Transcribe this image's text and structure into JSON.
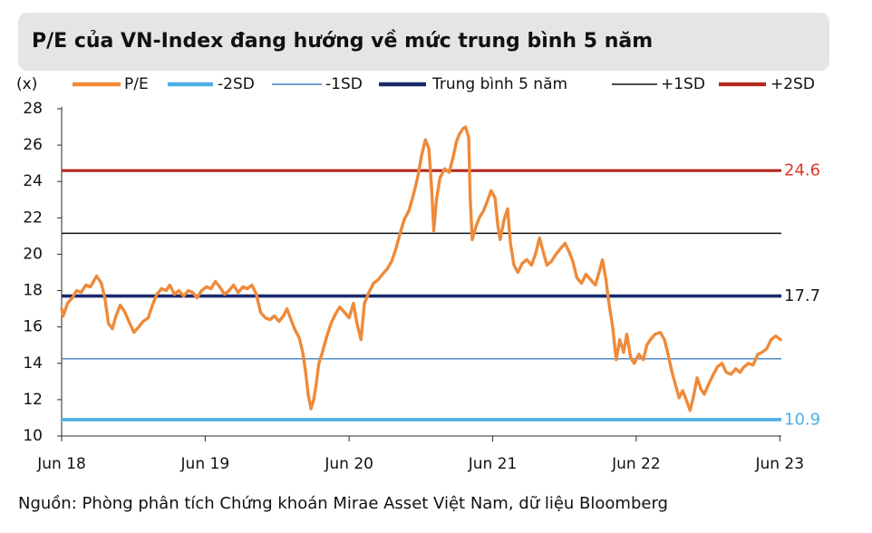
{
  "chart_data": {
    "type": "line",
    "title": "P/E của VN-Index đang hướng về mức trung bình 5 năm",
    "xlabel": "",
    "ylabel": "(x)",
    "ylim": [
      10,
      28
    ],
    "yticks": [
      28,
      26,
      24,
      22,
      20,
      18,
      16,
      14,
      12,
      10
    ],
    "xlim": [
      "2018-06-01",
      "2023-06-05"
    ],
    "xticks": [
      {
        "label": "Jun 18",
        "date": "2018-06-01"
      },
      {
        "label": "Jun 19",
        "date": "2019-06-01"
      },
      {
        "label": "Jun 20",
        "date": "2020-06-01"
      },
      {
        "label": "Jun 21",
        "date": "2021-06-01"
      },
      {
        "label": "Jun 22",
        "date": "2022-06-01"
      },
      {
        "label": "Jun 23",
        "date": "2023-06-01"
      }
    ],
    "grid": false,
    "legend": "top",
    "series": [
      {
        "name": "P/E",
        "color": "#ee8a3a",
        "points": [
          [
            "2018-06-01",
            17.0
          ],
          [
            "2018-06-05",
            16.6
          ],
          [
            "2018-06-16",
            17.3
          ],
          [
            "2018-06-28",
            17.6
          ],
          [
            "2018-07-09",
            18.0
          ],
          [
            "2018-07-20",
            17.9
          ],
          [
            "2018-08-02",
            18.3
          ],
          [
            "2018-08-13",
            18.2
          ],
          [
            "2018-08-29",
            18.8
          ],
          [
            "2018-09-10",
            18.4
          ],
          [
            "2018-09-19",
            17.6
          ],
          [
            "2018-09-28",
            16.2
          ],
          [
            "2018-10-08",
            15.9
          ],
          [
            "2018-10-17",
            16.6
          ],
          [
            "2018-10-28",
            17.2
          ],
          [
            "2018-11-09",
            16.8
          ],
          [
            "2018-11-21",
            16.2
          ],
          [
            "2018-12-02",
            15.7
          ],
          [
            "2018-12-14",
            16.0
          ],
          [
            "2018-12-25",
            16.3
          ],
          [
            "2019-01-07",
            16.5
          ],
          [
            "2019-01-18",
            17.2
          ],
          [
            "2019-01-29",
            17.8
          ],
          [
            "2019-02-10",
            18.1
          ],
          [
            "2019-02-22",
            18.0
          ],
          [
            "2019-03-03",
            18.3
          ],
          [
            "2019-03-15",
            17.8
          ],
          [
            "2019-03-26",
            18.0
          ],
          [
            "2019-04-07",
            17.7
          ],
          [
            "2019-04-19",
            18.0
          ],
          [
            "2019-04-30",
            17.9
          ],
          [
            "2019-05-11",
            17.6
          ],
          [
            "2019-05-23",
            18.0
          ],
          [
            "2019-06-04",
            18.2
          ],
          [
            "2019-06-16",
            18.1
          ],
          [
            "2019-06-27",
            18.5
          ],
          [
            "2019-07-08",
            18.2
          ],
          [
            "2019-07-20",
            17.8
          ],
          [
            "2019-08-01",
            18.0
          ],
          [
            "2019-08-12",
            18.3
          ],
          [
            "2019-08-24",
            17.9
          ],
          [
            "2019-09-05",
            18.2
          ],
          [
            "2019-09-16",
            18.1
          ],
          [
            "2019-09-28",
            18.3
          ],
          [
            "2019-10-09",
            17.8
          ],
          [
            "2019-10-20",
            16.8
          ],
          [
            "2019-11-01",
            16.5
          ],
          [
            "2019-11-13",
            16.4
          ],
          [
            "2019-11-24",
            16.6
          ],
          [
            "2019-12-06",
            16.3
          ],
          [
            "2019-12-17",
            16.6
          ],
          [
            "2019-12-26",
            17.0
          ],
          [
            "2020-01-05",
            16.4
          ],
          [
            "2020-01-14",
            15.9
          ],
          [
            "2020-01-26",
            15.4
          ],
          [
            "2020-02-04",
            14.6
          ],
          [
            "2020-02-11",
            13.6
          ],
          [
            "2020-02-18",
            12.3
          ],
          [
            "2020-02-25",
            11.5
          ],
          [
            "2020-03-03",
            12.0
          ],
          [
            "2020-03-09",
            12.8
          ],
          [
            "2020-03-16",
            14.0
          ],
          [
            "2020-03-25",
            14.6
          ],
          [
            "2020-04-04",
            15.4
          ],
          [
            "2020-04-16",
            16.2
          ],
          [
            "2020-04-27",
            16.7
          ],
          [
            "2020-05-08",
            17.1
          ],
          [
            "2020-05-20",
            16.8
          ],
          [
            "2020-06-01",
            16.5
          ],
          [
            "2020-06-12",
            17.3
          ],
          [
            "2020-06-21",
            16.2
          ],
          [
            "2020-07-01",
            15.3
          ],
          [
            "2020-07-10",
            17.3
          ],
          [
            "2020-07-21",
            17.9
          ],
          [
            "2020-08-02",
            18.4
          ],
          [
            "2020-08-14",
            18.6
          ],
          [
            "2020-08-25",
            18.9
          ],
          [
            "2020-09-06",
            19.2
          ],
          [
            "2020-09-17",
            19.6
          ],
          [
            "2020-09-28",
            20.3
          ],
          [
            "2020-10-08",
            21.1
          ],
          [
            "2020-10-19",
            21.9
          ],
          [
            "2020-10-31",
            22.4
          ],
          [
            "2020-11-12",
            23.3
          ],
          [
            "2020-11-23",
            24.3
          ],
          [
            "2020-12-02",
            25.4
          ],
          [
            "2020-12-12",
            26.3
          ],
          [
            "2020-12-21",
            25.8
          ],
          [
            "2020-12-28",
            23.5
          ],
          [
            "2021-01-02",
            21.3
          ],
          [
            "2021-01-09",
            23.0
          ],
          [
            "2021-01-18",
            24.2
          ],
          [
            "2021-01-30",
            24.7
          ],
          [
            "2021-02-10",
            24.5
          ],
          [
            "2021-02-20",
            25.3
          ],
          [
            "2021-03-01",
            26.2
          ],
          [
            "2021-03-08",
            26.6
          ],
          [
            "2021-03-17",
            26.9
          ],
          [
            "2021-03-24",
            27.0
          ],
          [
            "2021-04-01",
            26.4
          ],
          [
            "2021-04-05",
            23.0
          ],
          [
            "2021-04-10",
            20.8
          ],
          [
            "2021-04-19",
            21.5
          ],
          [
            "2021-04-28",
            22.0
          ],
          [
            "2021-05-09",
            22.4
          ],
          [
            "2021-05-18",
            22.9
          ],
          [
            "2021-05-28",
            23.5
          ],
          [
            "2021-06-07",
            23.1
          ],
          [
            "2021-06-14",
            21.6
          ],
          [
            "2021-06-20",
            20.8
          ],
          [
            "2021-06-30",
            21.9
          ],
          [
            "2021-07-09",
            22.5
          ],
          [
            "2021-07-16",
            20.6
          ],
          [
            "2021-07-25",
            19.4
          ],
          [
            "2021-08-04",
            19.0
          ],
          [
            "2021-08-15",
            19.5
          ],
          [
            "2021-08-27",
            19.7
          ],
          [
            "2021-09-08",
            19.4
          ],
          [
            "2021-09-19",
            20.1
          ],
          [
            "2021-09-28",
            20.9
          ],
          [
            "2021-10-08",
            20.1
          ],
          [
            "2021-10-17",
            19.4
          ],
          [
            "2021-10-28",
            19.6
          ],
          [
            "2021-11-09",
            20.0
          ],
          [
            "2021-11-20",
            20.3
          ],
          [
            "2021-12-02",
            20.6
          ],
          [
            "2021-12-13",
            20.1
          ],
          [
            "2021-12-22",
            19.6
          ],
          [
            "2022-01-01",
            18.7
          ],
          [
            "2022-01-13",
            18.4
          ],
          [
            "2022-01-24",
            18.9
          ],
          [
            "2022-02-05",
            18.6
          ],
          [
            "2022-02-17",
            18.3
          ],
          [
            "2022-02-28",
            19.1
          ],
          [
            "2022-03-07",
            19.7
          ],
          [
            "2022-03-16",
            18.6
          ],
          [
            "2022-03-23",
            17.4
          ],
          [
            "2022-04-02",
            16.0
          ],
          [
            "2022-04-11",
            14.2
          ],
          [
            "2022-04-20",
            15.3
          ],
          [
            "2022-04-30",
            14.6
          ],
          [
            "2022-05-08",
            15.6
          ],
          [
            "2022-05-18",
            14.3
          ],
          [
            "2022-05-27",
            14.0
          ],
          [
            "2022-06-08",
            14.5
          ],
          [
            "2022-06-19",
            14.2
          ],
          [
            "2022-06-28",
            15.0
          ],
          [
            "2022-07-07",
            15.3
          ],
          [
            "2022-07-19",
            15.6
          ],
          [
            "2022-08-01",
            15.7
          ],
          [
            "2022-08-12",
            15.3
          ],
          [
            "2022-08-21",
            14.5
          ],
          [
            "2022-08-31",
            13.5
          ],
          [
            "2022-09-09",
            12.8
          ],
          [
            "2022-09-18",
            12.1
          ],
          [
            "2022-09-27",
            12.5
          ],
          [
            "2022-10-06",
            12.0
          ],
          [
            "2022-10-16",
            11.4
          ],
          [
            "2022-10-25",
            12.2
          ],
          [
            "2022-11-03",
            13.2
          ],
          [
            "2022-11-12",
            12.6
          ],
          [
            "2022-11-21",
            12.3
          ],
          [
            "2022-12-01",
            12.8
          ],
          [
            "2022-12-12",
            13.3
          ],
          [
            "2022-12-24",
            13.8
          ],
          [
            "2023-01-05",
            14.0
          ],
          [
            "2023-01-16",
            13.5
          ],
          [
            "2023-01-28",
            13.4
          ],
          [
            "2023-02-09",
            13.7
          ],
          [
            "2023-02-20",
            13.5
          ],
          [
            "2023-03-02",
            13.8
          ],
          [
            "2023-03-13",
            14.0
          ],
          [
            "2023-03-25",
            13.9
          ],
          [
            "2023-04-06",
            14.5
          ],
          [
            "2023-04-17",
            14.6
          ],
          [
            "2023-04-29",
            14.8
          ],
          [
            "2023-05-10",
            15.3
          ],
          [
            "2023-05-22",
            15.5
          ],
          [
            "2023-06-03",
            15.3
          ]
        ]
      },
      {
        "name": "-2SD",
        "color": "#4cb0e6",
        "value": 10.9,
        "label": "10.9",
        "label_color": "#4cb0e6"
      },
      {
        "name": "-1SD",
        "color": "#3f80c0",
        "value": 14.25
      },
      {
        "name": "Trung bình 5 năm",
        "color": "#1c2a6b",
        "value": 17.7,
        "label": "17.7",
        "label_color": "#1a1a1a"
      },
      {
        "name": "+1SD",
        "color": "#111111",
        "value": 21.15
      },
      {
        "name": "+2SD",
        "color": "#b3281d",
        "value": 24.6,
        "label": "24.6",
        "label_color": "#e0342a"
      }
    ],
    "source": "Nguồn: Phòng phân tích Chứng khoán Mirae Asset Việt Nam, dữ liệu Bloomberg"
  }
}
